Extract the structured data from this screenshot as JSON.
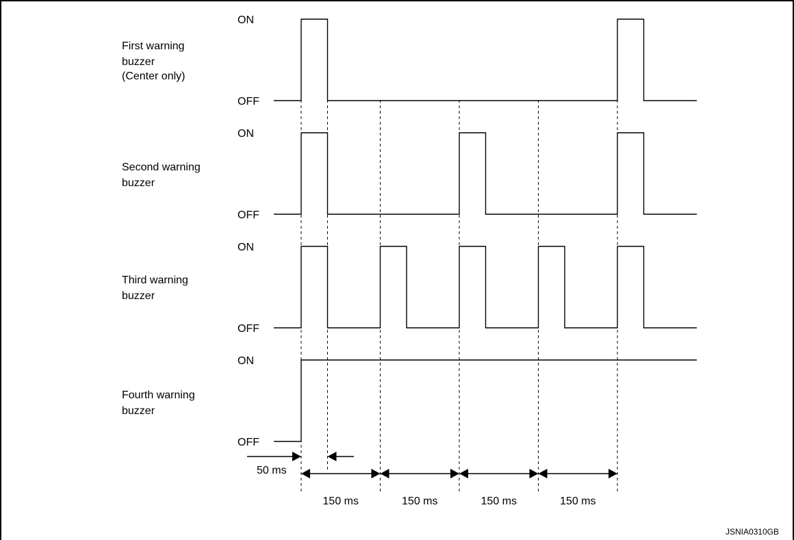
{
  "levels": {
    "on": "ON",
    "off": "OFF"
  },
  "buzzers": [
    {
      "label": [
        "First warning",
        "buzzer",
        "(Center only)"
      ],
      "on_intervals": [
        [
          0,
          50
        ],
        [
          600,
          650
        ]
      ]
    },
    {
      "label": [
        "Second warning",
        "buzzer"
      ],
      "on_intervals": [
        [
          0,
          50
        ],
        [
          300,
          350
        ],
        [
          600,
          650
        ]
      ]
    },
    {
      "label": [
        "Third warning",
        "buzzer"
      ],
      "on_intervals": [
        [
          0,
          50
        ],
        [
          150,
          200
        ],
        [
          300,
          350
        ],
        [
          450,
          500
        ],
        [
          600,
          650
        ]
      ]
    },
    {
      "label": [
        "Fourth warning",
        "buzzer"
      ],
      "on_intervals": [
        [
          0,
          775
        ]
      ]
    }
  ],
  "timing": {
    "pulse_label": "50 ms",
    "period_labels": [
      "150 ms",
      "150 ms",
      "150 ms",
      "150 ms"
    ],
    "marks_ms": [
      0,
      50,
      150,
      300,
      450,
      600
    ]
  },
  "figure_code": "JSNIA0310GB"
}
